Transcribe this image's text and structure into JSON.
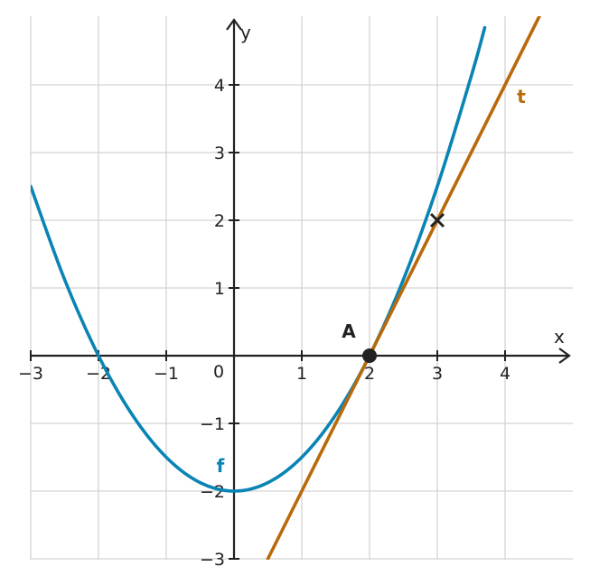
{
  "chart_data": {
    "type": "line",
    "title": "",
    "xlabel": "x",
    "ylabel": "y",
    "xlim": [
      -3,
      5
    ],
    "ylim": [
      -3,
      5
    ],
    "x_ticks": [
      -3,
      -2,
      -1,
      1,
      2,
      3,
      4
    ],
    "y_ticks": [
      -3,
      -2,
      -1,
      1,
      2,
      3,
      4
    ],
    "x_tick_labels": [
      "−3",
      "−2",
      "−1",
      "1",
      "2",
      "3",
      "4"
    ],
    "y_tick_labels": [
      "−3",
      "−2",
      "−1",
      "1",
      "2",
      "3",
      "4"
    ],
    "origin_label": "0",
    "grid": true,
    "series": [
      {
        "name": "f",
        "expression": "0.5x² − 2",
        "color": "#0a84b4",
        "x": [
          -3,
          -2.5,
          -2,
          -1.5,
          -1,
          -0.5,
          0,
          0.5,
          1,
          1.5,
          2,
          2.5,
          3,
          3.5,
          3.7
        ],
        "y": [
          2.5,
          1.125,
          0,
          -0.875,
          -1.5,
          -1.875,
          -2,
          -1.875,
          -1.5,
          -0.875,
          0,
          1.125,
          2.5,
          4.125,
          4.845
        ]
      },
      {
        "name": "t",
        "expression": "2x − 4",
        "color": "#b8690a",
        "x": [
          0.5,
          4.7
        ],
        "y": [
          -3,
          5.4
        ]
      }
    ],
    "points": [
      {
        "name": "A",
        "x": 2,
        "y": 0,
        "marker": "dot"
      },
      {
        "name": "",
        "x": 3,
        "y": 2,
        "marker": "cross"
      }
    ]
  },
  "colors": {
    "grid": "#d4d4d4",
    "axis": "#222222"
  }
}
